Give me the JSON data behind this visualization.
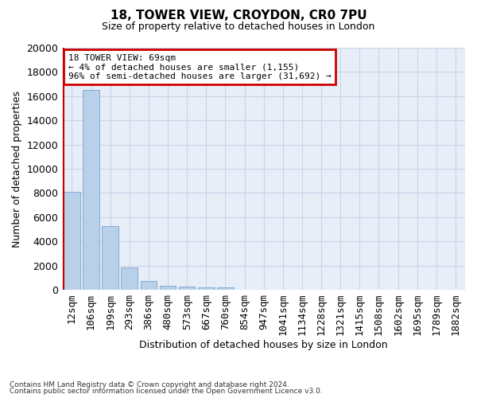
{
  "title_line1": "18, TOWER VIEW, CROYDON, CR0 7PU",
  "title_line2": "Size of property relative to detached houses in London",
  "xlabel": "Distribution of detached houses by size in London",
  "ylabel": "Number of detached properties",
  "categories": [
    "12sqm",
    "106sqm",
    "199sqm",
    "293sqm",
    "386sqm",
    "480sqm",
    "573sqm",
    "667sqm",
    "760sqm",
    "854sqm",
    "947sqm",
    "1041sqm",
    "1134sqm",
    "1228sqm",
    "1321sqm",
    "1415sqm",
    "1508sqm",
    "1602sqm",
    "1695sqm",
    "1789sqm",
    "1882sqm"
  ],
  "values": [
    8100,
    16500,
    5300,
    1850,
    750,
    340,
    270,
    230,
    200,
    0,
    0,
    0,
    0,
    0,
    0,
    0,
    0,
    0,
    0,
    0,
    0
  ],
  "bar_color": "#b8d0e8",
  "bar_edgecolor": "#6699cc",
  "highlight_color": "#cc0000",
  "annotation_text": "18 TOWER VIEW: 69sqm\n← 4% of detached houses are smaller (1,155)\n96% of semi-detached houses are larger (31,692) →",
  "annotation_box_color": "#cc0000",
  "ylim": [
    0,
    20000
  ],
  "yticks": [
    0,
    2000,
    4000,
    6000,
    8000,
    10000,
    12000,
    14000,
    16000,
    18000,
    20000
  ],
  "grid_color": "#c8d4e8",
  "bg_color": "#e8eef8",
  "footer_line1": "Contains HM Land Registry data © Crown copyright and database right 2024.",
  "footer_line2": "Contains public sector information licensed under the Open Government Licence v3.0."
}
